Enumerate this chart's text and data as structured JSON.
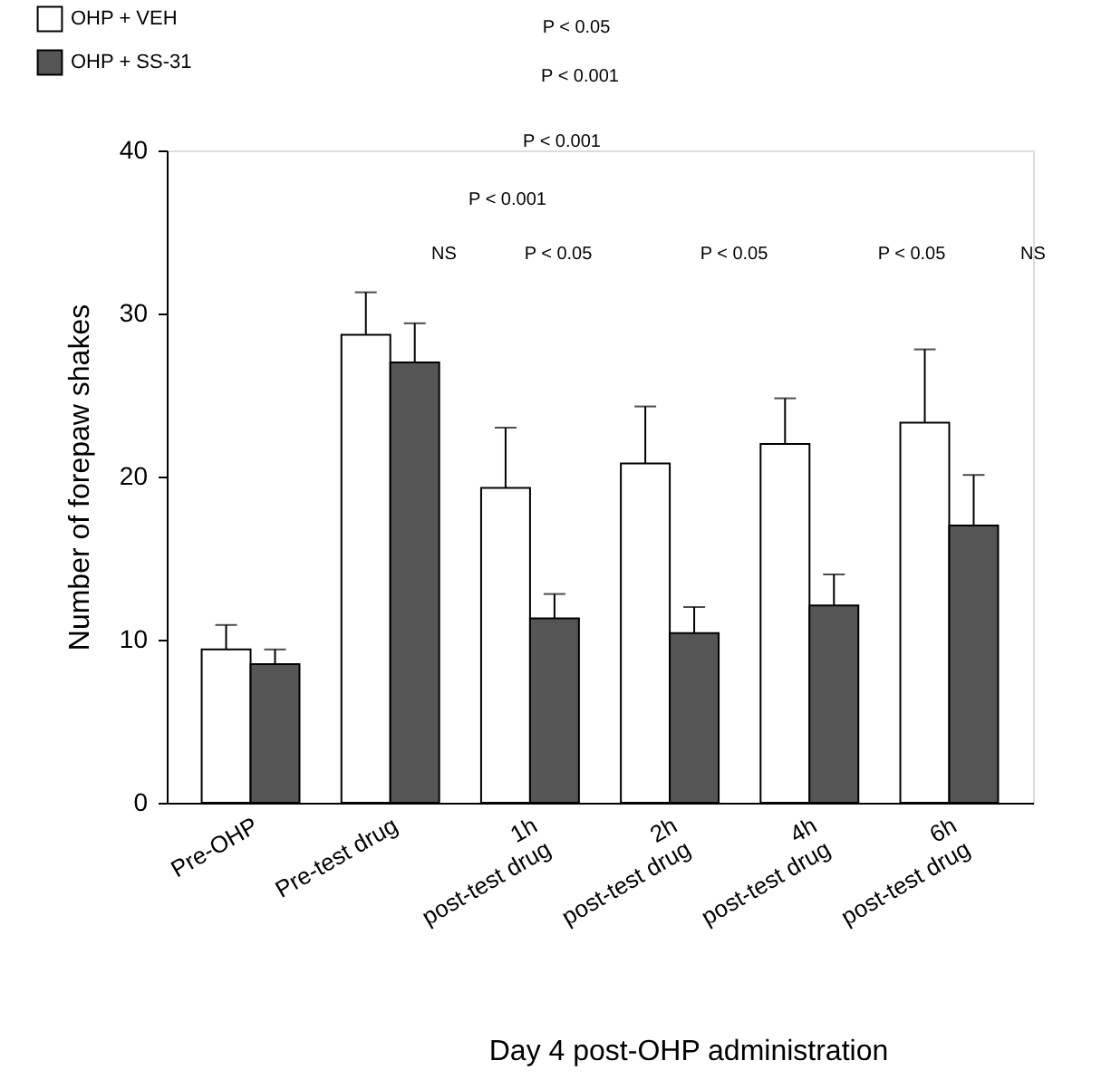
{
  "chart_data": {
    "type": "bar",
    "ylabel": "Number of forepaw shakes",
    "categories": [
      "Pre-OHP",
      "Pre-test drug",
      "1h\npost-test drug",
      "2h\npost-test drug",
      "4h\npost-test drug",
      "6h\npost-test drug"
    ],
    "series": [
      {
        "name": "OHP + VEH",
        "color": "#ffffff",
        "values": [
          9.4,
          28.7,
          19.3,
          20.8,
          22.0,
          23.3
        ],
        "errors": [
          [
            9.4,
            10.9
          ],
          [
            28.7,
            31.3
          ],
          [
            19.3,
            23.0
          ],
          [
            20.8,
            24.3
          ],
          [
            22.0,
            24.8
          ],
          [
            23.3,
            27.8
          ]
        ]
      },
      {
        "name": "OHP + SS-31",
        "color": "#555555",
        "values": [
          8.5,
          27.0,
          11.3,
          10.4,
          12.1,
          17.0
        ],
        "errors": [
          [
            8.5,
            9.4
          ],
          [
            27.0,
            29.4
          ],
          [
            11.3,
            12.8
          ],
          [
            10.4,
            12.0
          ],
          [
            12.1,
            14.0
          ],
          [
            17.0,
            20.1
          ]
        ]
      }
    ],
    "ylim": [
      0,
      40
    ],
    "yticks": [
      0,
      10,
      20,
      30,
      40
    ],
    "grid": false,
    "legend": "top left",
    "annotations": [
      "P < 0.05",
      "P < 0.001",
      "P < 0.001",
      "P < 0.001",
      "NS",
      "P < 0.05",
      "P < 0.05",
      "P < 0.05",
      "NS",
      "Day 4 post-OHP administration"
    ]
  }
}
